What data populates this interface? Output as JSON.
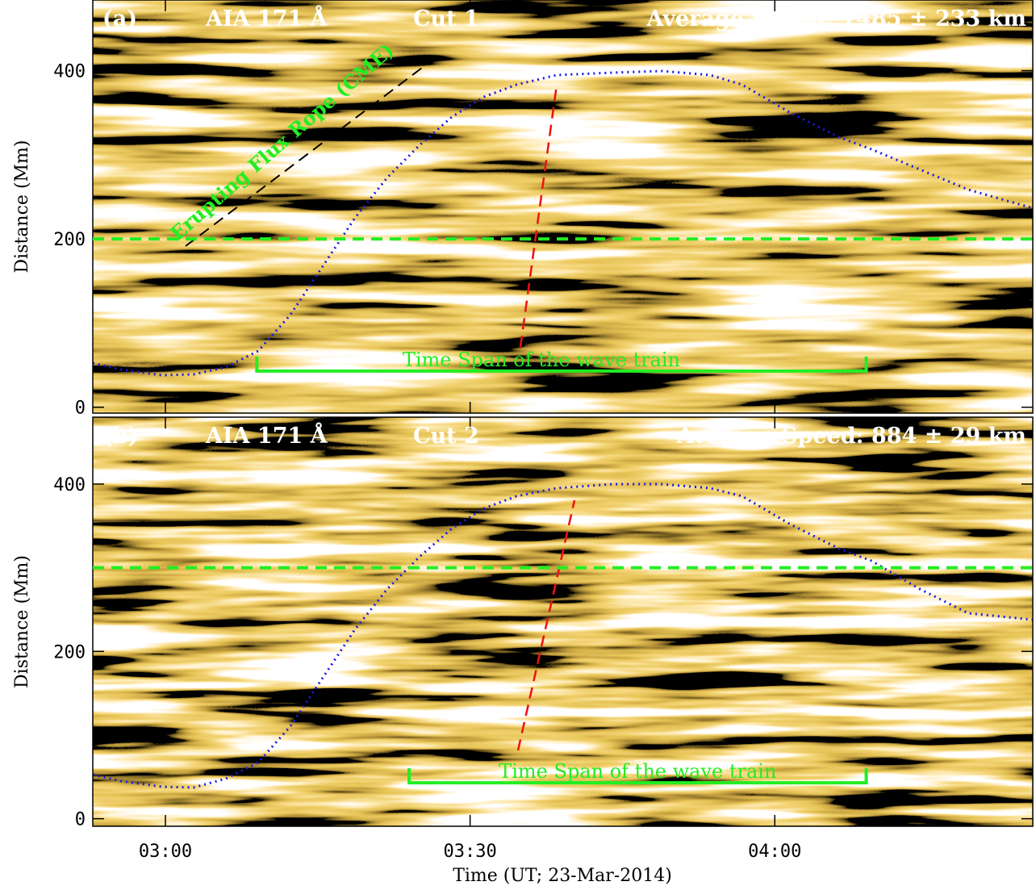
{
  "chart_data": [
    {
      "type": "image",
      "panel": "(a)",
      "channel": "AIA 171 Å",
      "cut": "Cut 1",
      "speed": "Average Speed: 1485 ± 233 km",
      "ylabel": "Distance (Mm)",
      "ylim": [
        -7,
        484
      ],
      "yticks": [
        0,
        200,
        400
      ],
      "hline": {
        "y": 200,
        "color": "#22ee22"
      },
      "flux_rope_label": "Erupting Flux Rope (CME)",
      "span": {
        "label": "Time Span of the wave train",
        "start": "03:09",
        "end": "04:09",
        "y": 43,
        "color": "#22ee22"
      }
    },
    {
      "type": "image",
      "panel": "(b)",
      "channel": "AIA 171 Å",
      "cut": "Cut 2",
      "speed": "Average Speed: 884 ± 29 km",
      "ylabel": "Distance (Mm)",
      "ylim": [
        -9,
        480
      ],
      "yticks": [
        0,
        200,
        400
      ],
      "xlabel": "Time (UT; 23-Mar-2014)",
      "xlim": [
        "02:52:51",
        "04:25:24"
      ],
      "xticks": [
        "03:00",
        "03:30",
        "04:00"
      ],
      "hline": {
        "y": 300,
        "color": "#22ee22"
      },
      "span": {
        "label": "Time Span of the wave train",
        "start": "03:24",
        "end": "04:09",
        "y": 43,
        "color": "#22ee22"
      }
    }
  ]
}
